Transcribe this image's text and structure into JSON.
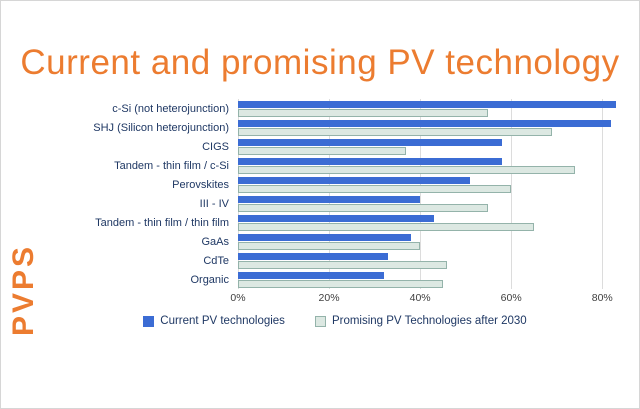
{
  "slide": {
    "title": "Current and promising PV technology",
    "watermark": "PVPS"
  },
  "chart_data": {
    "type": "bar",
    "orientation": "horizontal",
    "title": "Current and promising PV technology",
    "categories": [
      "c-Si (not heterojunction)",
      "SHJ (Silicon heterojunction)",
      "CIGS",
      "Tandem - thin film / c-Si",
      "Perovskites",
      "III - IV",
      "Tandem - thin film / thin film",
      "GaAs",
      "CdTe",
      "Organic"
    ],
    "series": [
      {
        "name": "Current PV technologies",
        "color": "#3B6CD4",
        "values": [
          83,
          82,
          58,
          58,
          51,
          40,
          43,
          38,
          33,
          32
        ]
      },
      {
        "name": "Promising PV Technologies after 2030",
        "color": "#DCE8E2",
        "border_color": "#94B3AA",
        "values": [
          55,
          69,
          37,
          74,
          60,
          55,
          65,
          40,
          46,
          45
        ]
      }
    ],
    "x_ticks": [
      {
        "label": "0%",
        "value": 0
      },
      {
        "label": "20%",
        "value": 20
      },
      {
        "label": "40%",
        "value": 40
      },
      {
        "label": "60%",
        "value": 60
      },
      {
        "label": "80%",
        "value": 80
      }
    ],
    "xlim": [
      0,
      85
    ],
    "grid": true,
    "legend_position": "bottom"
  }
}
